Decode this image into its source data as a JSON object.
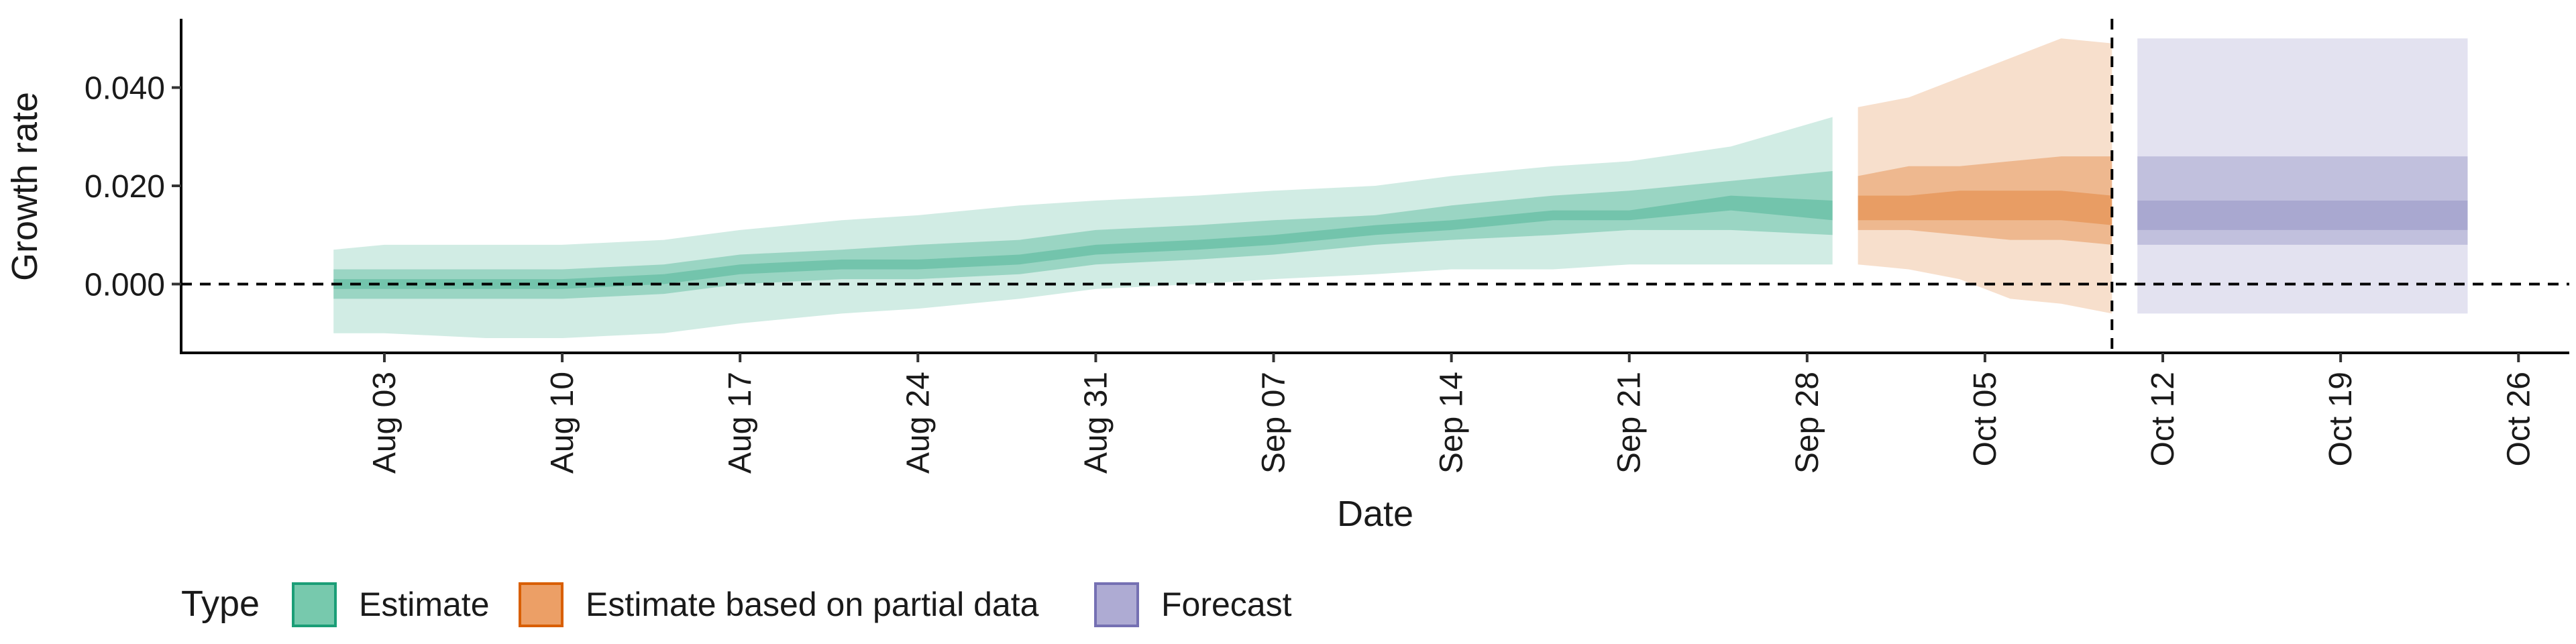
{
  "chart_data": {
    "type": "area",
    "ylabel": "Growth rate",
    "xlabel": "Date",
    "ylim": [
      -0.014,
      0.054
    ],
    "xlim": [
      "2021-07-26",
      "2021-10-28"
    ],
    "yticks": [
      0.0,
      0.02,
      0.04
    ],
    "ytick_labels": [
      "0.000",
      "0.020",
      "0.040"
    ],
    "xticks": [
      "2021-08-03",
      "2021-08-10",
      "2021-08-17",
      "2021-08-24",
      "2021-08-31",
      "2021-09-07",
      "2021-09-14",
      "2021-09-21",
      "2021-09-28",
      "2021-10-05",
      "2021-10-12",
      "2021-10-19",
      "2021-10-26"
    ],
    "xtick_labels": [
      "Aug 03",
      "Aug 10",
      "Aug 17",
      "Aug 24",
      "Aug 31",
      "Sep 07",
      "Sep 14",
      "Sep 21",
      "Sep 28",
      "Oct 05",
      "Oct 12",
      "Oct 19",
      "Oct 26"
    ],
    "hline_y": 0,
    "vline_x": "2021-10-10",
    "grid": false,
    "legend": {
      "title": "Type",
      "position": "bottom-left",
      "entries": [
        {
          "label": "Estimate",
          "color": "#1B9E77"
        },
        {
          "label": "Estimate based on partial data",
          "color": "#D95F02"
        },
        {
          "label": "Forecast",
          "color": "#7570B3"
        }
      ]
    },
    "series": [
      {
        "type_key": "estimate",
        "color": "#1B9E77",
        "x": [
          "2021-08-01",
          "2021-08-03",
          "2021-08-07",
          "2021-08-10",
          "2021-08-14",
          "2021-08-17",
          "2021-08-21",
          "2021-08-24",
          "2021-08-28",
          "2021-08-31",
          "2021-09-04",
          "2021-09-07",
          "2021-09-11",
          "2021-09-14",
          "2021-09-18",
          "2021-09-21",
          "2021-09-25",
          "2021-09-29"
        ],
        "median": [
          0.0,
          0.0,
          0.0,
          0.0,
          0.001,
          0.003,
          0.004,
          0.004,
          0.005,
          0.007,
          0.008,
          0.009,
          0.011,
          0.012,
          0.014,
          0.014,
          0.016,
          0.015
        ],
        "lower_90": [
          -0.01,
          -0.01,
          -0.011,
          -0.011,
          -0.01,
          -0.008,
          -0.006,
          -0.005,
          -0.003,
          -0.001,
          0.0,
          0.001,
          0.002,
          0.003,
          0.003,
          0.004,
          0.004,
          0.004
        ],
        "upper_90": [
          0.007,
          0.008,
          0.008,
          0.008,
          0.009,
          0.011,
          0.013,
          0.014,
          0.016,
          0.017,
          0.018,
          0.019,
          0.02,
          0.022,
          0.024,
          0.025,
          0.028,
          0.034
        ],
        "lower_50": [
          -0.003,
          -0.003,
          -0.003,
          -0.003,
          -0.002,
          0.0,
          0.001,
          0.001,
          0.002,
          0.004,
          0.005,
          0.006,
          0.008,
          0.009,
          0.01,
          0.011,
          0.011,
          0.01
        ],
        "upper_50": [
          0.003,
          0.003,
          0.003,
          0.003,
          0.004,
          0.006,
          0.007,
          0.008,
          0.009,
          0.011,
          0.012,
          0.013,
          0.014,
          0.016,
          0.018,
          0.019,
          0.021,
          0.023
        ],
        "lower_20": [
          -0.001,
          -0.001,
          -0.001,
          -0.001,
          0.0,
          0.002,
          0.003,
          0.003,
          0.004,
          0.006,
          0.007,
          0.008,
          0.01,
          0.011,
          0.013,
          0.013,
          0.015,
          0.013
        ],
        "upper_20": [
          0.001,
          0.001,
          0.001,
          0.001,
          0.002,
          0.004,
          0.005,
          0.005,
          0.006,
          0.008,
          0.009,
          0.01,
          0.012,
          0.013,
          0.015,
          0.015,
          0.018,
          0.017
        ]
      },
      {
        "type_key": "partial",
        "color": "#D95F02",
        "x": [
          "2021-09-30",
          "2021-10-02",
          "2021-10-04",
          "2021-10-06",
          "2021-10-08",
          "2021-10-10"
        ],
        "median": [
          0.016,
          0.015,
          0.016,
          0.017,
          0.016,
          0.015
        ],
        "lower_90": [
          0.004,
          0.003,
          0.001,
          -0.003,
          -0.004,
          -0.006
        ],
        "upper_90": [
          0.036,
          0.038,
          0.042,
          0.046,
          0.05,
          0.049
        ],
        "lower_50": [
          0.011,
          0.011,
          0.01,
          0.009,
          0.009,
          0.008
        ],
        "upper_50": [
          0.022,
          0.024,
          0.024,
          0.025,
          0.026,
          0.026
        ],
        "lower_20": [
          0.013,
          0.013,
          0.013,
          0.013,
          0.013,
          0.012
        ],
        "upper_20": [
          0.018,
          0.018,
          0.019,
          0.019,
          0.019,
          0.018
        ]
      },
      {
        "type_key": "forecast",
        "color": "#7570B3",
        "x": [
          "2021-10-11",
          "2021-10-24"
        ],
        "median": [
          0.014,
          0.014
        ],
        "lower_90": [
          -0.006,
          -0.006
        ],
        "upper_90": [
          0.05,
          0.05
        ],
        "lower_50": [
          0.008,
          0.008
        ],
        "upper_50": [
          0.026,
          0.026
        ],
        "lower_20": [
          0.011,
          0.011
        ],
        "upper_20": [
          0.017,
          0.017
        ]
      }
    ]
  }
}
